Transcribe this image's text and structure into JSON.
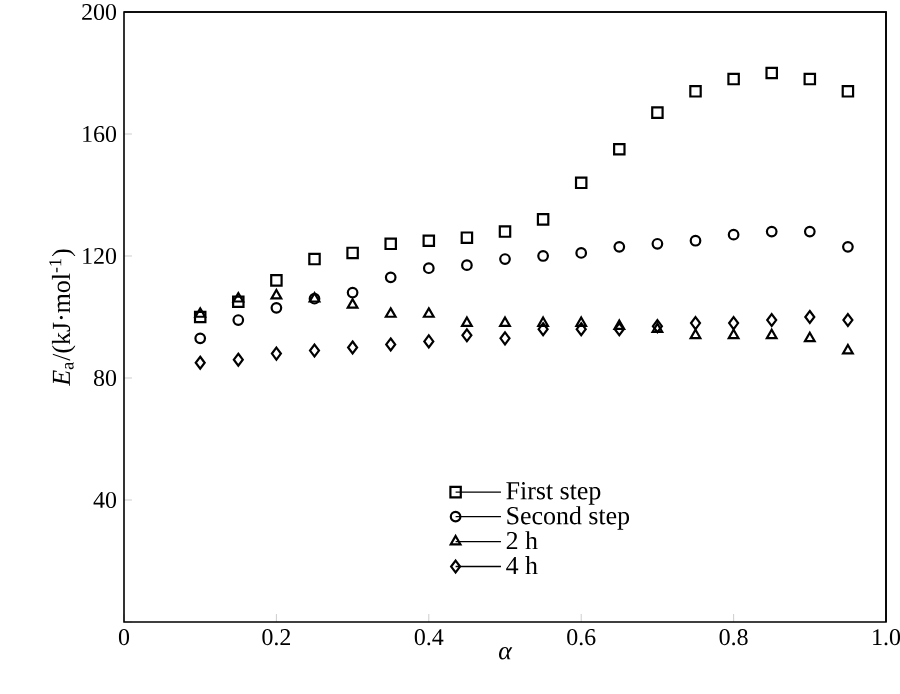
{
  "chart_data": {
    "type": "scatter",
    "xlabel": "α",
    "ylabel": "*E*$_{a}$/(kJ·mol$^{-1}$)",
    "x": [
      0.1,
      0.15,
      0.2,
      0.25,
      0.3,
      0.35,
      0.4,
      0.45,
      0.5,
      0.55,
      0.6,
      0.65,
      0.7,
      0.75,
      0.8,
      0.85,
      0.9,
      0.95
    ],
    "series": [
      {
        "name": "First step",
        "color": "#000000",
        "marker": "square",
        "values": [
          100,
          105,
          112,
          119,
          121,
          124,
          125,
          126,
          128,
          132,
          144,
          155,
          167,
          174,
          178,
          180,
          178,
          174
        ]
      },
      {
        "name": "Second step",
        "color": "#000000",
        "marker": "circle",
        "values": [
          93,
          99,
          103,
          106,
          108,
          113,
          116,
          117,
          119,
          120,
          121,
          123,
          124,
          125,
          127,
          128,
          128,
          123
        ]
      },
      {
        "name": "2 h",
        "color": "#000000",
        "marker": "triangle",
        "values": [
          101,
          106,
          107,
          106,
          104,
          101,
          101,
          98,
          98,
          98,
          98,
          97,
          96,
          94,
          94,
          94,
          93,
          89
        ]
      },
      {
        "name": "4 h",
        "color": "#000000",
        "marker": "diamond",
        "values": [
          85,
          86,
          88,
          89,
          90,
          91,
          92,
          94,
          93,
          96,
          96,
          96,
          97,
          98,
          98,
          99,
          100,
          99
        ]
      }
    ],
    "xlim": [
      0,
      1.0
    ],
    "ylim": [
      0,
      200
    ],
    "xticks": [
      {
        "value": 0,
        "label": "0"
      },
      0.2,
      0.4,
      0.6,
      0.8,
      {
        "value": 1.0,
        "label": "1.0"
      }
    ],
    "yticks": [
      {
        "value": 0,
        "label": null
      },
      40,
      80,
      120,
      160,
      200
    ],
    "grid": false,
    "legend": "bottom"
  }
}
